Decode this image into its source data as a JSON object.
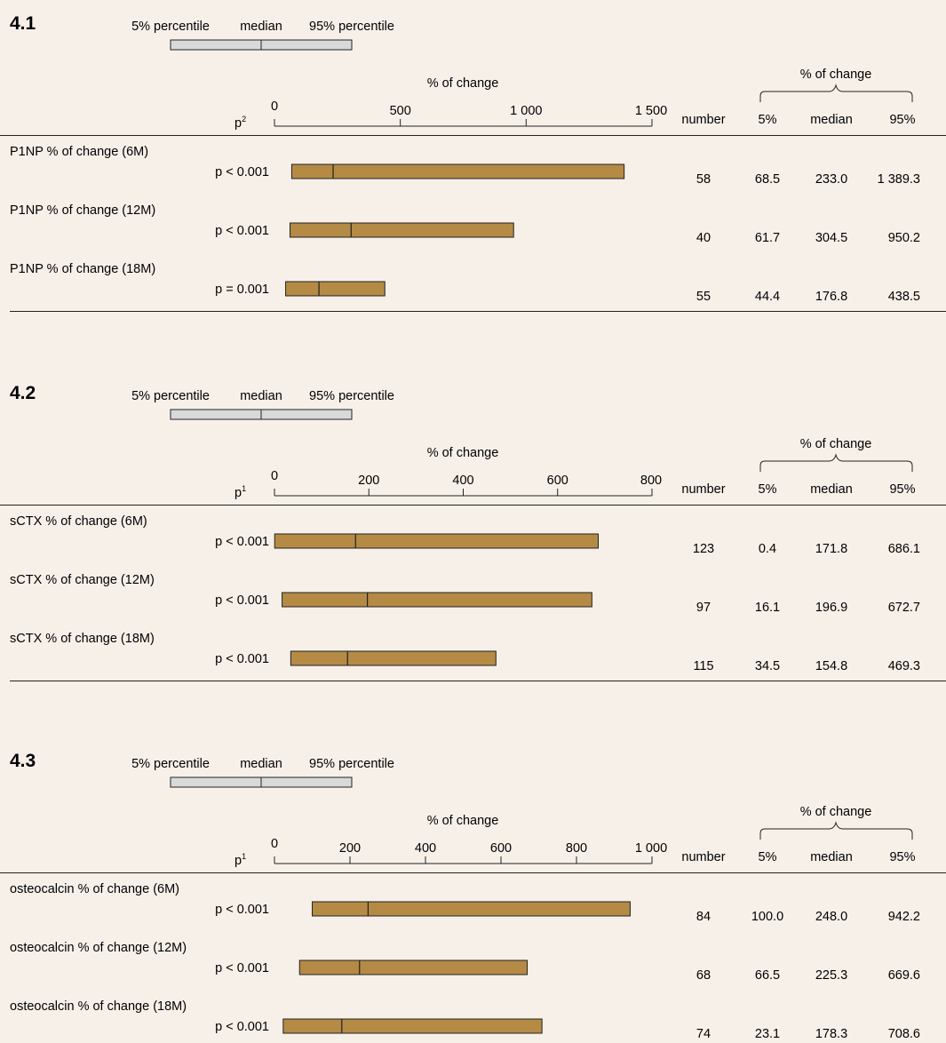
{
  "legend": {
    "low_label": "5% percentile",
    "mid_label": "median",
    "high_label": "95% percentile"
  },
  "colors": {
    "background": "#f7f0e9",
    "bar_fill": "#b48a45",
    "legend_fill": "#d9d9d9",
    "rule": "#222222"
  },
  "columns": {
    "number": "number",
    "stats_group": "% of change",
    "p5": "5%",
    "median": "median",
    "p95": "95%"
  },
  "chart_data": [
    {
      "type": "bar",
      "panel_label": "4.1",
      "xlabel": "% of change",
      "p_header": "p",
      "p_superscript": "2",
      "xlim": [
        0,
        1500
      ],
      "ticks": [
        0,
        500,
        1000,
        1500
      ],
      "tick_labels": [
        "0",
        "500",
        "1 000",
        "1 500"
      ],
      "rows": [
        {
          "label": "P1NP % of change (6M)",
          "p": "p < 0.001",
          "low": 68.5,
          "median": 233.0,
          "high": 1389.3,
          "number": "58",
          "low_text": "68.5",
          "median_text": "233.0",
          "high_text": "1 389.3"
        },
        {
          "label": "P1NP % of change (12M)",
          "p": "p < 0.001",
          "low": 61.7,
          "median": 304.5,
          "high": 950.2,
          "number": "40",
          "low_text": "61.7",
          "median_text": "304.5",
          "high_text": "950.2"
        },
        {
          "label": "P1NP % of change (18M)",
          "p": "p = 0.001",
          "low": 44.4,
          "median": 176.8,
          "high": 438.5,
          "number": "55",
          "low_text": "44.4",
          "median_text": "176.8",
          "high_text": "438.5"
        }
      ]
    },
    {
      "type": "bar",
      "panel_label": "4.2",
      "xlabel": "% of change",
      "p_header": "p",
      "p_superscript": "1",
      "xlim": [
        0,
        800
      ],
      "ticks": [
        0,
        200,
        400,
        600,
        800
      ],
      "tick_labels": [
        "0",
        "200",
        "400",
        "600",
        "800"
      ],
      "rows": [
        {
          "label": "sCTX % of change (6M)",
          "p": "p < 0.001",
          "low": 0.4,
          "median": 171.8,
          "high": 686.1,
          "number": "123",
          "low_text": "0.4",
          "median_text": "171.8",
          "high_text": "686.1"
        },
        {
          "label": "sCTX % of change (12M)",
          "p": "p < 0.001",
          "low": 16.1,
          "median": 196.9,
          "high": 672.7,
          "number": "97",
          "low_text": "16.1",
          "median_text": "196.9",
          "high_text": "672.7"
        },
        {
          "label": "sCTX % of change (18M)",
          "p": "p < 0.001",
          "low": 34.5,
          "median": 154.8,
          "high": 469.3,
          "number": "115",
          "low_text": "34.5",
          "median_text": "154.8",
          "high_text": "469.3"
        }
      ]
    },
    {
      "type": "bar",
      "panel_label": "4.3",
      "xlabel": "% of change",
      "p_header": "p",
      "p_superscript": "1",
      "xlim": [
        0,
        1000
      ],
      "ticks": [
        0,
        200,
        400,
        600,
        800,
        1000
      ],
      "tick_labels": [
        "0",
        "200",
        "400",
        "600",
        "800",
        "1 000"
      ],
      "rows": [
        {
          "label": "osteocalcin % of change (6M)",
          "p": "p < 0.001",
          "low": 100.0,
          "median": 248.0,
          "high": 942.2,
          "number": "84",
          "low_text": "100.0",
          "median_text": "248.0",
          "high_text": "942.2"
        },
        {
          "label": "osteocalcin % of change (12M)",
          "p": "p < 0.001",
          "low": 66.5,
          "median": 225.3,
          "high": 669.6,
          "number": "68",
          "low_text": "66.5",
          "median_text": "225.3",
          "high_text": "669.6"
        },
        {
          "label": "osteocalcin % of change (18M)",
          "p": "p < 0.001",
          "low": 23.1,
          "median": 178.3,
          "high": 708.6,
          "number": "74",
          "low_text": "23.1",
          "median_text": "178.3",
          "high_text": "708.6"
        }
      ]
    }
  ]
}
